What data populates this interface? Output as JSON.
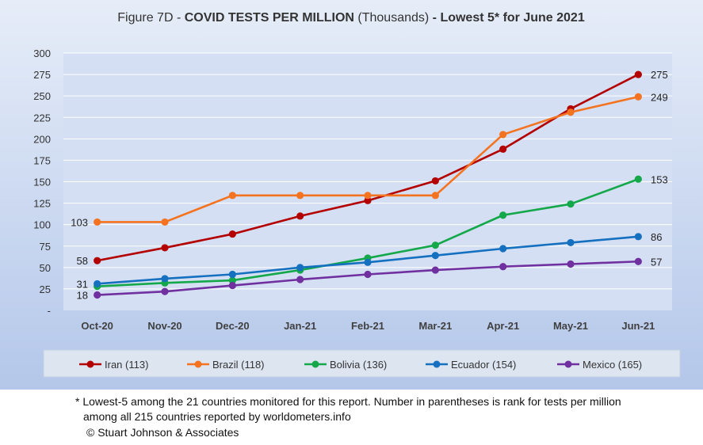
{
  "title": {
    "prefix": "Figure 7D - ",
    "main": "COVID TESTS PER MILLION",
    "unit": " (Thousands)",
    "suffix": " - Lowest 5* for June 2021"
  },
  "colors": {
    "background_top": "#dfe8f7",
    "background_bottom": "#b8cbeb",
    "plot": "#d5e0f4",
    "grid": "#ffffff",
    "legend_bg": "#dfe6f2"
  },
  "chart_data": {
    "type": "line",
    "categories": [
      "Oct-20",
      "Nov-20",
      "Dec-20",
      "Jan-21",
      "Feb-21",
      "Mar-21",
      "Apr-21",
      "May-21",
      "Jun-21"
    ],
    "yticks": [
      "300",
      "275",
      "250",
      "225",
      "200",
      "175",
      "150",
      "125",
      "100",
      "75",
      "50",
      "25",
      "-"
    ],
    "ylim": [
      0,
      300
    ],
    "grid": true,
    "legend_position": "bottom",
    "series": [
      {
        "name": "Iran (113)",
        "color": "#b30000",
        "values": [
          58,
          73,
          89,
          110,
          128,
          151,
          188,
          235,
          275
        ],
        "start_label": "58",
        "end_label": "275"
      },
      {
        "name": "Brazil (118)",
        "color": "#f47320",
        "values": [
          103,
          103,
          134,
          134,
          134,
          134,
          205,
          231,
          249
        ],
        "start_label": "103",
        "end_label": "249"
      },
      {
        "name": "Bolivia (136)",
        "color": "#14a84a",
        "values": [
          28,
          32,
          35,
          47,
          61,
          76,
          111,
          124,
          153
        ],
        "start_label": "",
        "end_label": "153"
      },
      {
        "name": "Ecuador (154)",
        "color": "#1570c0",
        "values": [
          31,
          37,
          42,
          50,
          56,
          64,
          72,
          79,
          86
        ],
        "start_label": "31",
        "end_label": "86"
      },
      {
        "name": "Mexico (165)",
        "color": "#7030a0",
        "values": [
          18,
          22,
          29,
          36,
          42,
          47,
          51,
          54,
          57
        ],
        "start_label": "18",
        "end_label": "57"
      }
    ]
  },
  "footnote": {
    "line1": "* Lowest-5 among the 21 countries monitored for this report. Number in parentheses is rank for tests per million",
    "line2": "among all 215 countries reported by worldometers.info",
    "line3": "© Stuart Johnson & Associates"
  }
}
